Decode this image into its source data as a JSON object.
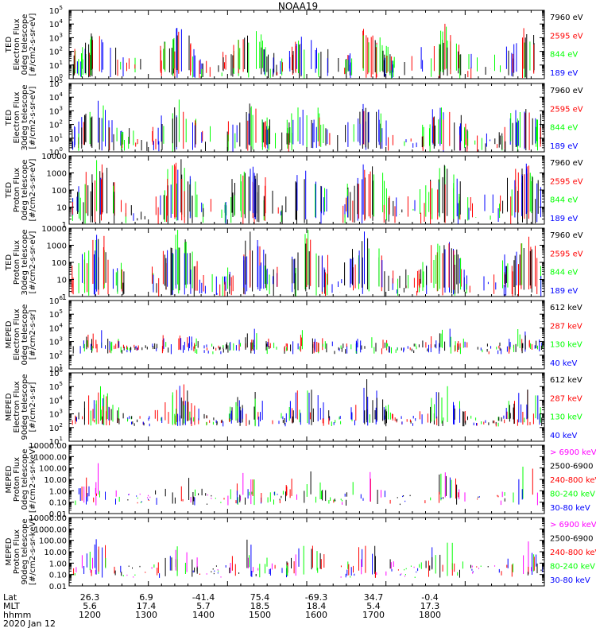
{
  "title": "NOAA19",
  "colors": {
    "black": "#000000",
    "red": "#ff0000",
    "green": "#00ff00",
    "blue": "#0000ff",
    "magenta": "#ff00ff"
  },
  "x_axis": {
    "tick_times": [
      "1200",
      "1300",
      "1400",
      "1500",
      "1600",
      "1700",
      "1800"
    ],
    "rows": [
      {
        "label": "Lat",
        "values": [
          "26.3",
          "6.9",
          "-41.4",
          "75.4",
          "-69.3",
          "34.7",
          "-0.4"
        ]
      },
      {
        "label": "MLT",
        "values": [
          "5.6",
          "17.4",
          "5.7",
          "18.5",
          "18.4",
          "5.4",
          "17.3"
        ]
      },
      {
        "label": "hhmm",
        "values": [
          "1200",
          "1300",
          "1400",
          "1500",
          "1600",
          "1700",
          "1800"
        ]
      }
    ],
    "date": "2020 Jan 12"
  },
  "chart_data": [
    {
      "type": "line",
      "panel": 1,
      "ylabel": [
        "TED",
        "Electron Flux",
        "0deg telescope",
        "[#/cm2-s-sr-eV]"
      ],
      "yscale": "log",
      "ylim": [
        1,
        100000
      ],
      "yticks": [
        {
          "v": 1,
          "t": "10",
          "e": "0"
        },
        {
          "v": 10,
          "t": "10",
          "e": "1"
        },
        {
          "v": 100,
          "t": "10",
          "e": "2"
        },
        {
          "v": 1000,
          "t": "10",
          "e": "3"
        },
        {
          "v": 10000,
          "t": "10",
          "e": "4"
        },
        {
          "v": 100000,
          "t": "10",
          "e": "5"
        }
      ],
      "legend": [
        {
          "label": "7960 eV",
          "color": "black"
        },
        {
          "label": "2595 eV",
          "color": "red"
        },
        {
          "label": "844 eV",
          "color": "green"
        },
        {
          "label": "189 eV",
          "color": "blue"
        }
      ]
    },
    {
      "type": "line",
      "panel": 2,
      "ylabel": [
        "TED",
        "Electron Flux",
        "30deg telescope",
        "[#/cm2-s-sr-eV]"
      ],
      "yscale": "log",
      "ylim": [
        1,
        100000
      ],
      "yticks": [
        {
          "v": 1,
          "t": "10",
          "e": "0"
        },
        {
          "v": 10,
          "t": "10",
          "e": "1"
        },
        {
          "v": 100,
          "t": "10",
          "e": "2"
        },
        {
          "v": 1000,
          "t": "10",
          "e": "3"
        },
        {
          "v": 10000,
          "t": "10",
          "e": "4"
        },
        {
          "v": 100000,
          "t": "10",
          "e": "5"
        }
      ],
      "legend": [
        {
          "label": "7960 eV",
          "color": "black"
        },
        {
          "label": "2595 eV",
          "color": "red"
        },
        {
          "label": "844 eV",
          "color": "green"
        },
        {
          "label": "189 eV",
          "color": "blue"
        }
      ]
    },
    {
      "type": "line",
      "panel": 3,
      "ylabel": [
        "TED",
        "Proton Flux",
        "0deg telescope",
        "[#/cm2-s-sr-eV]"
      ],
      "yscale": "log",
      "ylim": [
        1,
        10000
      ],
      "yticks": [
        {
          "v": 1,
          "t": "1"
        },
        {
          "v": 10,
          "t": "10"
        },
        {
          "v": 100,
          "t": "100"
        },
        {
          "v": 1000,
          "t": "1000"
        },
        {
          "v": 10000,
          "t": "10000"
        }
      ],
      "legend": [
        {
          "label": "7960 eV",
          "color": "black"
        },
        {
          "label": "2595 eV",
          "color": "red"
        },
        {
          "label": "844 eV",
          "color": "green"
        },
        {
          "label": "189 eV",
          "color": "blue"
        }
      ]
    },
    {
      "type": "line",
      "panel": 4,
      "ylabel": [
        "TED",
        "Proton Flux",
        "30deg telescope",
        "[#/cm2-s-sr-eV]"
      ],
      "yscale": "log",
      "ylim": [
        1,
        10000
      ],
      "yticks": [
        {
          "v": 1,
          "t": "1"
        },
        {
          "v": 10,
          "t": "10"
        },
        {
          "v": 100,
          "t": "100"
        },
        {
          "v": 1000,
          "t": "1000"
        },
        {
          "v": 10000,
          "t": "10000"
        }
      ],
      "legend": [
        {
          "label": "7960 eV",
          "color": "black"
        },
        {
          "label": "2595 eV",
          "color": "red"
        },
        {
          "label": "844 eV",
          "color": "green"
        },
        {
          "label": "189 eV",
          "color": "blue"
        }
      ]
    },
    {
      "type": "line",
      "panel": 5,
      "ylabel": [
        "MEPED",
        "Electron Flux",
        "0deg telescope",
        "[#/cm2-s-sr]"
      ],
      "yscale": "log",
      "ylim": [
        10,
        1000000
      ],
      "yticks": [
        {
          "v": 10,
          "t": "10",
          "e": "1"
        },
        {
          "v": 100,
          "t": "10",
          "e": "2"
        },
        {
          "v": 1000,
          "t": "10",
          "e": "3"
        },
        {
          "v": 10000,
          "t": "10",
          "e": "4"
        },
        {
          "v": 100000,
          "t": "10",
          "e": "5"
        },
        {
          "v": 1000000,
          "t": "10",
          "e": "6"
        }
      ],
      "legend": [
        {
          "label": "612 keV",
          "color": "black"
        },
        {
          "label": "287 keV",
          "color": "red"
        },
        {
          "label": "130 keV",
          "color": "green"
        },
        {
          "label": "40 keV",
          "color": "blue"
        }
      ]
    },
    {
      "type": "line",
      "panel": 6,
      "ylabel": [
        "MEPED",
        "Electron Flux",
        "90deg telescope",
        "[#/cm2-s-sr]"
      ],
      "yscale": "log",
      "ylim": [
        10,
        1000000
      ],
      "yticks": [
        {
          "v": 10,
          "t": "10",
          "e": "1"
        },
        {
          "v": 100,
          "t": "10",
          "e": "2"
        },
        {
          "v": 1000,
          "t": "10",
          "e": "3"
        },
        {
          "v": 10000,
          "t": "10",
          "e": "4"
        },
        {
          "v": 100000,
          "t": "10",
          "e": "5"
        },
        {
          "v": 1000000,
          "t": "10",
          "e": "6"
        }
      ],
      "legend": [
        {
          "label": "612 keV",
          "color": "black"
        },
        {
          "label": "287 keV",
          "color": "red"
        },
        {
          "label": "130 keV",
          "color": "green"
        },
        {
          "label": "40 keV",
          "color": "blue"
        }
      ]
    },
    {
      "type": "line",
      "panel": 7,
      "ylabel": [
        "MEPED",
        "Proton Flux",
        "0deg telescope",
        "[#/cm2-s-sr-keV]"
      ],
      "yscale": "log",
      "ylim": [
        0.01,
        10000
      ],
      "yticks": [
        {
          "v": 0.01,
          "t": "0.01"
        },
        {
          "v": 0.1,
          "t": "0.10"
        },
        {
          "v": 1,
          "t": "1.00"
        },
        {
          "v": 10,
          "t": "10.00"
        },
        {
          "v": 100,
          "t": "100.00"
        },
        {
          "v": 1000,
          "t": "1000.00"
        },
        {
          "v": 10000,
          "t": "10000.00"
        }
      ],
      "legend": [
        {
          "label": "> 6900 keV",
          "color": "magenta"
        },
        {
          "label": "2500-6900",
          "color": "black"
        },
        {
          "label": "240-800 keV",
          "color": "red"
        },
        {
          "label": "80-240 keV",
          "color": "green"
        },
        {
          "label": "30-80 keV",
          "color": "blue"
        }
      ]
    },
    {
      "type": "line",
      "panel": 8,
      "ylabel": [
        "MEPED",
        "Proton Flux",
        "90deg telescope",
        "[#/cm2-s-sr-keV]"
      ],
      "yscale": "log",
      "ylim": [
        0.01,
        10000
      ],
      "yticks": [
        {
          "v": 0.01,
          "t": "0.01"
        },
        {
          "v": 0.1,
          "t": "0.10"
        },
        {
          "v": 1,
          "t": "1.00"
        },
        {
          "v": 10,
          "t": "10.00"
        },
        {
          "v": 100,
          "t": "100.00"
        },
        {
          "v": 1000,
          "t": "1000.00"
        },
        {
          "v": 10000,
          "t": "10000.00"
        }
      ],
      "legend": [
        {
          "label": "> 6900 keV",
          "color": "magenta"
        },
        {
          "label": "2500-6900",
          "color": "black"
        },
        {
          "label": "240-800 keV",
          "color": "red"
        },
        {
          "label": "80-240 keV",
          "color": "green"
        },
        {
          "label": "30-80 keV",
          "color": "blue"
        }
      ]
    }
  ]
}
